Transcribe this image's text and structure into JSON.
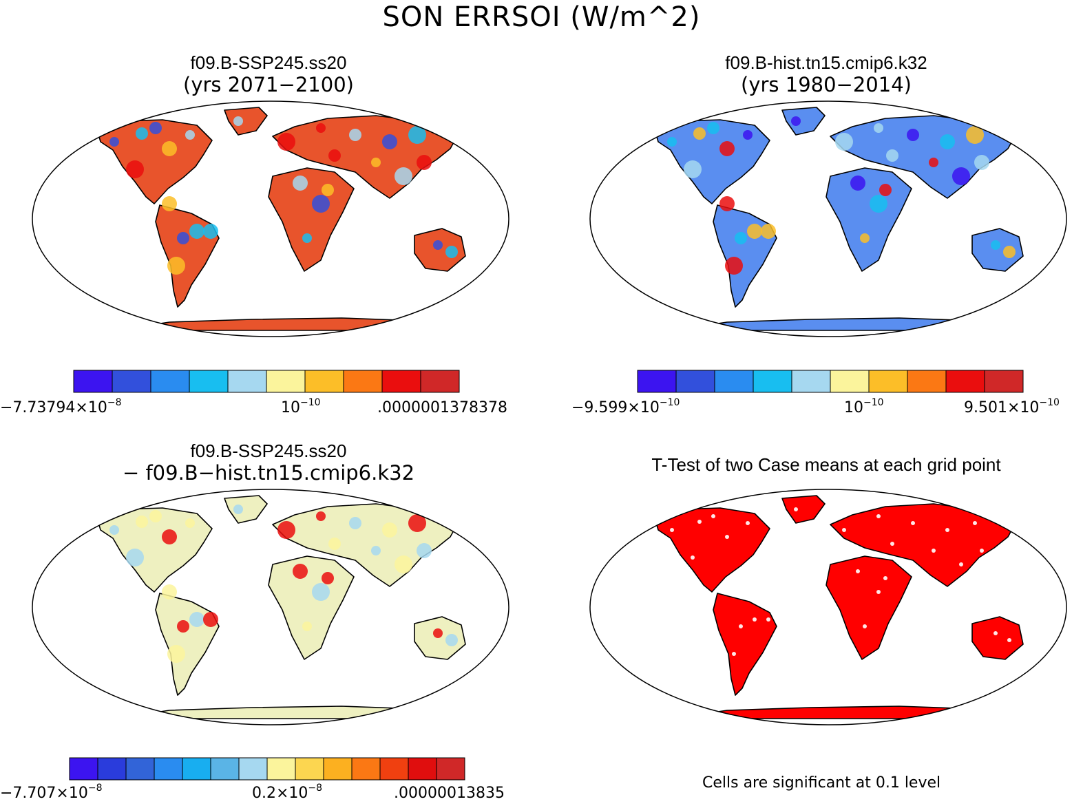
{
  "title": "SON ERRSOI (W/m^2)",
  "panels": [
    {
      "title": "f09.B-SSP245.ss20",
      "subtitle": "(yrs 2071−2100)",
      "land_color": "#e8542c",
      "colorbar": {
        "colors": [
          "#3c14f0",
          "#3250dc",
          "#2a8cf0",
          "#18bef0",
          "#a6d8f0",
          "#fbf49c",
          "#fcbe28",
          "#fb7814",
          "#ea0e0e",
          "#d02828"
        ],
        "labels": [
          {
            "text": "−7.73794×10",
            "exp": "−8"
          },
          {
            "text": "10",
            "exp": "−10"
          },
          {
            "text": ".0000001378378",
            "exp": ""
          }
        ]
      }
    },
    {
      "title": "f09.B-hist.tn15.cmip6.k32",
      "subtitle": "(yrs 1980−2014)",
      "land_color": "#5a8ef0",
      "colorbar": {
        "colors": [
          "#3c14f0",
          "#3250dc",
          "#2a8cf0",
          "#18bef0",
          "#a6d8f0",
          "#fbf49c",
          "#fcbe28",
          "#fb7814",
          "#ea0e0e",
          "#d02828"
        ],
        "labels": [
          {
            "text": "−9.599×10",
            "exp": "−10"
          },
          {
            "text": "10",
            "exp": "−10"
          },
          {
            "text": "9.501×10",
            "exp": "−10"
          }
        ]
      }
    },
    {
      "title": "f09.B-SSP245.ss20",
      "subtitle": "− f09.B−hist.tn15.cmip6.k32",
      "land_color": "#eef0c0",
      "colorbar": {
        "colors": [
          "#3c14f0",
          "#2a3cdc",
          "#3264d8",
          "#2a8cf0",
          "#18aef0",
          "#5ab4e6",
          "#a6d8f0",
          "#fbf49c",
          "#fcd650",
          "#fcb020",
          "#fb7814",
          "#f04010",
          "#e00e0e",
          "#d02828"
        ],
        "labels": [
          {
            "text": "−7.707×10",
            "exp": "−8"
          },
          {
            "text": "0.2×10",
            "exp": "−8"
          },
          {
            "text": ".00000013835",
            "exp": ""
          }
        ]
      }
    },
    {
      "title": "T-Test of two Case means at each grid point",
      "subtitle": "",
      "land_color": "#ff0000",
      "note": "Cells are significant at 0.1 level"
    }
  ]
}
